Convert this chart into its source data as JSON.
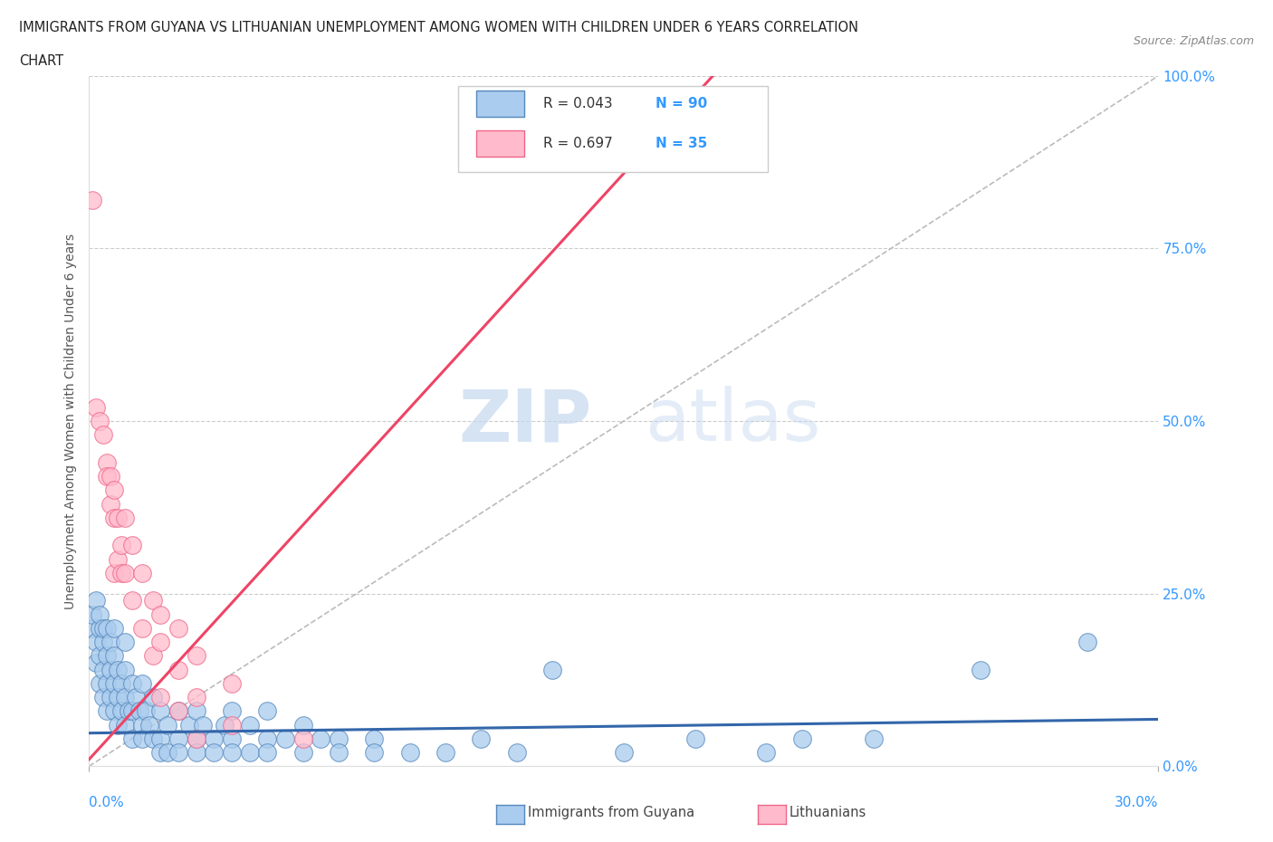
{
  "title_line1": "IMMIGRANTS FROM GUYANA VS LITHUANIAN UNEMPLOYMENT AMONG WOMEN WITH CHILDREN UNDER 6 YEARS CORRELATION",
  "title_line2": "CHART",
  "source": "Source: ZipAtlas.com",
  "ylabel": "Unemployment Among Women with Children Under 6 years",
  "xlim": [
    0.0,
    0.3
  ],
  "ylim": [
    0.0,
    1.0
  ],
  "xtick_positions": [
    0.0,
    0.3
  ],
  "xtick_labels": [
    "0.0%",
    "30.0%"
  ],
  "ytick_values": [
    0.0,
    0.25,
    0.5,
    0.75,
    1.0
  ],
  "ytick_labels": [
    "0.0%",
    "25.0%",
    "50.0%",
    "75.0%",
    "100.0%"
  ],
  "grid_color": "#cccccc",
  "background_color": "#ffffff",
  "watermark_zip": "ZIP",
  "watermark_atlas": "atlas",
  "series": [
    {
      "name": "Immigrants from Guyana",
      "color": "#aaccee",
      "edge_color": "#5588bb",
      "R": 0.043,
      "N": 90,
      "line_color": "#3366aa",
      "trend_x": [
        0.0,
        0.3
      ],
      "trend_y": [
        0.048,
        0.068
      ]
    },
    {
      "name": "Lithuanians",
      "color": "#ffbbcc",
      "edge_color": "#ee6688",
      "R": 0.697,
      "N": 35,
      "line_color": "#ee4466",
      "trend_x": [
        0.0,
        0.175
      ],
      "trend_y": [
        0.01,
        1.0
      ]
    }
  ],
  "diagonal_color": "#bbbbbb",
  "guyana_points": [
    [
      0.001,
      0.2
    ],
    [
      0.001,
      0.22
    ],
    [
      0.002,
      0.18
    ],
    [
      0.002,
      0.24
    ],
    [
      0.002,
      0.15
    ],
    [
      0.003,
      0.2
    ],
    [
      0.003,
      0.16
    ],
    [
      0.003,
      0.22
    ],
    [
      0.003,
      0.12
    ],
    [
      0.004,
      0.18
    ],
    [
      0.004,
      0.14
    ],
    [
      0.004,
      0.2
    ],
    [
      0.004,
      0.1
    ],
    [
      0.005,
      0.16
    ],
    [
      0.005,
      0.12
    ],
    [
      0.005,
      0.2
    ],
    [
      0.005,
      0.08
    ],
    [
      0.006,
      0.18
    ],
    [
      0.006,
      0.14
    ],
    [
      0.006,
      0.1
    ],
    [
      0.007,
      0.16
    ],
    [
      0.007,
      0.12
    ],
    [
      0.007,
      0.08
    ],
    [
      0.007,
      0.2
    ],
    [
      0.008,
      0.14
    ],
    [
      0.008,
      0.1
    ],
    [
      0.008,
      0.06
    ],
    [
      0.009,
      0.12
    ],
    [
      0.009,
      0.08
    ],
    [
      0.01,
      0.18
    ],
    [
      0.01,
      0.14
    ],
    [
      0.01,
      0.1
    ],
    [
      0.01,
      0.06
    ],
    [
      0.011,
      0.08
    ],
    [
      0.012,
      0.12
    ],
    [
      0.012,
      0.08
    ],
    [
      0.012,
      0.04
    ],
    [
      0.013,
      0.1
    ],
    [
      0.014,
      0.08
    ],
    [
      0.015,
      0.12
    ],
    [
      0.015,
      0.06
    ],
    [
      0.015,
      0.04
    ],
    [
      0.016,
      0.08
    ],
    [
      0.017,
      0.06
    ],
    [
      0.018,
      0.1
    ],
    [
      0.018,
      0.04
    ],
    [
      0.02,
      0.08
    ],
    [
      0.02,
      0.04
    ],
    [
      0.02,
      0.02
    ],
    [
      0.022,
      0.06
    ],
    [
      0.022,
      0.02
    ],
    [
      0.025,
      0.08
    ],
    [
      0.025,
      0.04
    ],
    [
      0.025,
      0.02
    ],
    [
      0.028,
      0.06
    ],
    [
      0.03,
      0.08
    ],
    [
      0.03,
      0.04
    ],
    [
      0.03,
      0.02
    ],
    [
      0.032,
      0.06
    ],
    [
      0.035,
      0.04
    ],
    [
      0.035,
      0.02
    ],
    [
      0.038,
      0.06
    ],
    [
      0.04,
      0.08
    ],
    [
      0.04,
      0.04
    ],
    [
      0.04,
      0.02
    ],
    [
      0.045,
      0.06
    ],
    [
      0.045,
      0.02
    ],
    [
      0.05,
      0.08
    ],
    [
      0.05,
      0.04
    ],
    [
      0.05,
      0.02
    ],
    [
      0.055,
      0.04
    ],
    [
      0.06,
      0.06
    ],
    [
      0.06,
      0.02
    ],
    [
      0.065,
      0.04
    ],
    [
      0.07,
      0.04
    ],
    [
      0.07,
      0.02
    ],
    [
      0.08,
      0.04
    ],
    [
      0.08,
      0.02
    ],
    [
      0.09,
      0.02
    ],
    [
      0.1,
      0.02
    ],
    [
      0.11,
      0.04
    ],
    [
      0.12,
      0.02
    ],
    [
      0.13,
      0.14
    ],
    [
      0.15,
      0.02
    ],
    [
      0.17,
      0.04
    ],
    [
      0.19,
      0.02
    ],
    [
      0.2,
      0.04
    ],
    [
      0.22,
      0.04
    ],
    [
      0.25,
      0.14
    ],
    [
      0.28,
      0.18
    ]
  ],
  "lithuanian_points": [
    [
      0.001,
      0.82
    ],
    [
      0.002,
      0.52
    ],
    [
      0.003,
      0.5
    ],
    [
      0.004,
      0.48
    ],
    [
      0.005,
      0.44
    ],
    [
      0.005,
      0.42
    ],
    [
      0.006,
      0.42
    ],
    [
      0.006,
      0.38
    ],
    [
      0.007,
      0.4
    ],
    [
      0.007,
      0.36
    ],
    [
      0.007,
      0.28
    ],
    [
      0.008,
      0.36
    ],
    [
      0.008,
      0.3
    ],
    [
      0.009,
      0.32
    ],
    [
      0.009,
      0.28
    ],
    [
      0.01,
      0.36
    ],
    [
      0.01,
      0.28
    ],
    [
      0.012,
      0.32
    ],
    [
      0.012,
      0.24
    ],
    [
      0.015,
      0.28
    ],
    [
      0.015,
      0.2
    ],
    [
      0.018,
      0.24
    ],
    [
      0.018,
      0.16
    ],
    [
      0.02,
      0.22
    ],
    [
      0.02,
      0.18
    ],
    [
      0.02,
      0.1
    ],
    [
      0.025,
      0.2
    ],
    [
      0.025,
      0.14
    ],
    [
      0.025,
      0.08
    ],
    [
      0.03,
      0.16
    ],
    [
      0.03,
      0.1
    ],
    [
      0.03,
      0.04
    ],
    [
      0.04,
      0.12
    ],
    [
      0.04,
      0.06
    ],
    [
      0.06,
      0.04
    ]
  ]
}
